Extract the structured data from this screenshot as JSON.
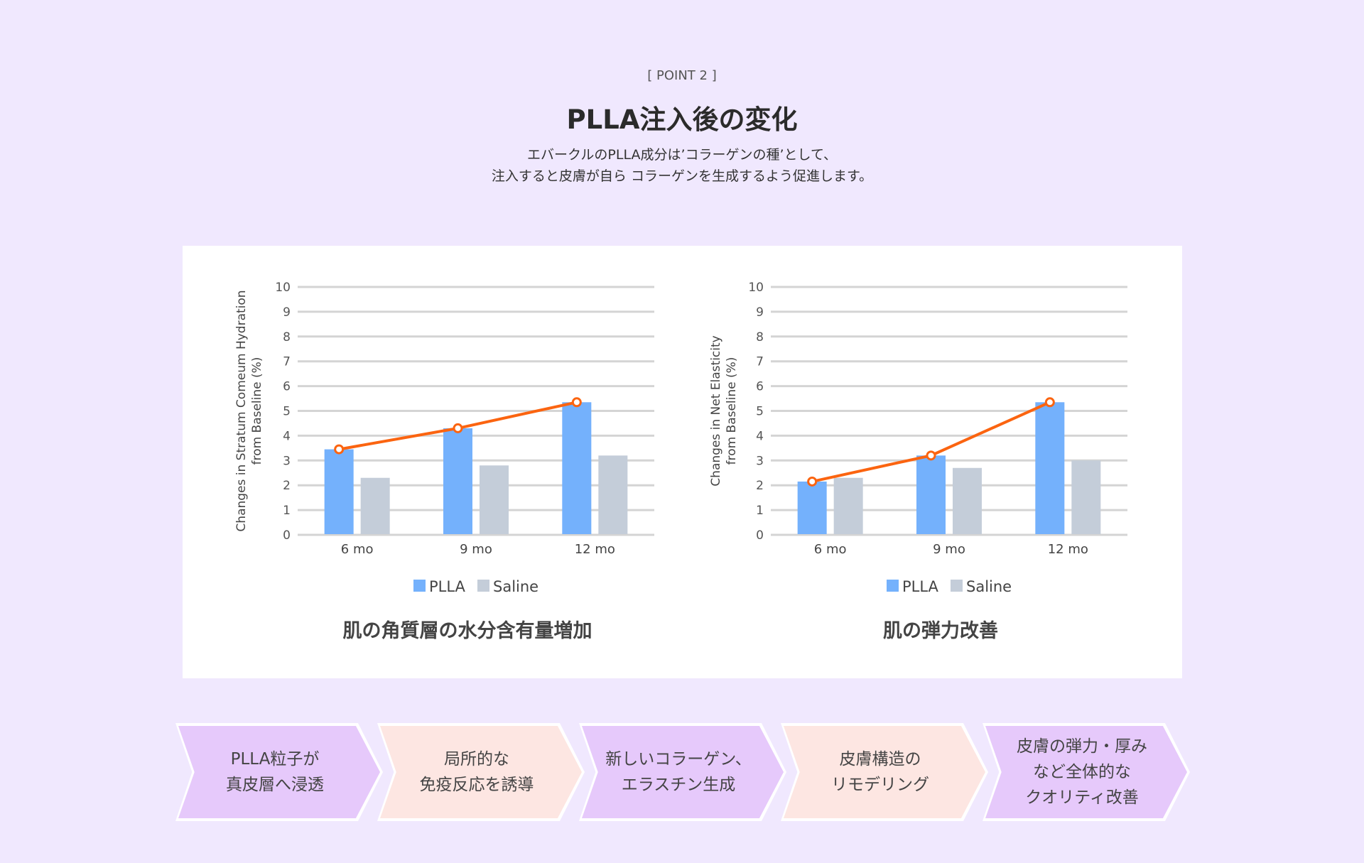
{
  "header": {
    "point_label": "[ POINT 2 ]",
    "title": "PLLA注入後の変化",
    "subtitle_line1": "エバークルのPLLA成分は’コラーゲンの種’として、",
    "subtitle_line2": "注入すると皮膚が自ら コラーゲンを生成するよう促進します。"
  },
  "colors": {
    "plla": "#74b1fc",
    "saline": "#c4cdd9",
    "line": "#fb6410",
    "grid": "#d4d4d4"
  },
  "chart_data": [
    {
      "type": "bar",
      "title": "肌の角質層の水分含有量増加",
      "ylabel_line1": "Changes in Stratum Comeum Hydration",
      "ylabel_line2": "from Baseline (%)",
      "categories": [
        "6 mo",
        "9 mo",
        "12 mo"
      ],
      "yticks": [
        "0",
        "1",
        "2",
        "3",
        "4",
        "5",
        "6",
        "7",
        "8",
        "9",
        "10"
      ],
      "ylim": [
        0,
        10
      ],
      "grid": true,
      "legend_position": "bottom",
      "series": [
        {
          "name": "PLLA",
          "values": [
            3.45,
            4.3,
            5.35
          ]
        },
        {
          "name": "Saline",
          "values": [
            2.3,
            2.8,
            3.2
          ]
        }
      ],
      "trend_line": {
        "series": "PLLA",
        "values": [
          3.45,
          4.3,
          5.35
        ]
      }
    },
    {
      "type": "bar",
      "title": "肌の弾力改善",
      "ylabel_line1": "Changes in Net Elasticity",
      "ylabel_line2": "from Baseline (%)",
      "categories": [
        "6 mo",
        "9 mo",
        "12 mo"
      ],
      "yticks": [
        "0",
        "1",
        "2",
        "3",
        "4",
        "5",
        "6",
        "7",
        "8",
        "9",
        "10"
      ],
      "ylim": [
        0,
        10
      ],
      "grid": true,
      "legend_position": "bottom",
      "series": [
        {
          "name": "PLLA",
          "values": [
            2.15,
            3.2,
            5.35
          ]
        },
        {
          "name": "Saline",
          "values": [
            2.3,
            2.7,
            3.0
          ]
        }
      ],
      "trend_line": {
        "series": "PLLA",
        "values": [
          2.15,
          3.2,
          5.35
        ]
      }
    }
  ],
  "steps": [
    {
      "text": "PLLA粒子が\n真皮層へ浸透",
      "color": "purple"
    },
    {
      "text": "局所的な\n免疫反応を誘導",
      "color": "peach"
    },
    {
      "text": "新しいコラーゲン、\nエラスチン生成",
      "color": "purple"
    },
    {
      "text": "皮膚構造の\nリモデリング",
      "color": "peach"
    },
    {
      "text": "皮膚の弾力・厚み\nなど全体的な\nクオリティ改善",
      "color": "purple"
    }
  ]
}
